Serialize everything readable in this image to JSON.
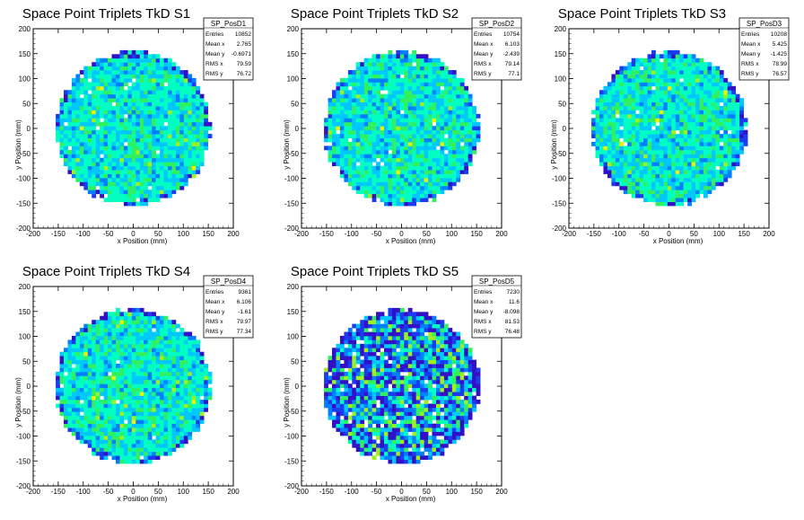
{
  "window": {
    "width": 896,
    "height": 574
  },
  "colors": {
    "palette": [
      "#3310c8",
      "#1a3cf0",
      "#0080ff",
      "#00c8ff",
      "#00ffc0",
      "#30f060",
      "#a0f020",
      "#f0f000",
      "#ff8000",
      "#ff0000"
    ],
    "frame": "#000000",
    "background": "#ffffff"
  },
  "chart_data": [
    {
      "type": "heatmap",
      "title": "Space Point Triplets TkD S1",
      "xlabel": "x Position (mm)",
      "ylabel": "y Position (mm)",
      "xlim": [
        -200,
        200
      ],
      "ylim": [
        -200,
        200
      ],
      "xticks": [
        -200,
        -150,
        -100,
        -50,
        0,
        50,
        100,
        150,
        200
      ],
      "yticks": [
        -200,
        -150,
        -100,
        -50,
        0,
        50,
        100,
        150,
        200
      ],
      "footprint_radius_mm": 155,
      "bin_width_mm": 8,
      "stats": {
        "name": "SP_PosD1",
        "rows": [
          [
            "Entries",
            "10852"
          ],
          [
            "Mean x",
            "2.765"
          ],
          [
            "Mean y",
            "-0.6971"
          ],
          [
            "RMS x",
            "79.59"
          ],
          [
            "RMS y",
            "76.72"
          ]
        ]
      }
    },
    {
      "type": "heatmap",
      "title": "Space Point Triplets TkD S2",
      "xlabel": "x Position (mm)",
      "ylabel": "y Position (mm)",
      "xlim": [
        -200,
        200
      ],
      "ylim": [
        -200,
        200
      ],
      "xticks": [
        -200,
        -150,
        -100,
        -50,
        0,
        50,
        100,
        150,
        200
      ],
      "yticks": [
        -200,
        -150,
        -100,
        -50,
        0,
        50,
        100,
        150,
        200
      ],
      "footprint_radius_mm": 155,
      "bin_width_mm": 8,
      "stats": {
        "name": "SP_PosD2",
        "rows": [
          [
            "Entries",
            "10754"
          ],
          [
            "Mean x",
            "6.103"
          ],
          [
            "Mean y",
            "-2.439"
          ],
          [
            "RMS x",
            "79.14"
          ],
          [
            "RMS y",
            "77.1"
          ]
        ]
      }
    },
    {
      "type": "heatmap",
      "title": "Space Point Triplets TkD S3",
      "xlabel": "x Position (mm)",
      "ylabel": "y Position (mm)",
      "xlim": [
        -200,
        200
      ],
      "ylim": [
        -200,
        200
      ],
      "xticks": [
        -200,
        -150,
        -100,
        -50,
        0,
        50,
        100,
        150,
        200
      ],
      "yticks": [
        -200,
        -150,
        -100,
        -50,
        0,
        50,
        100,
        150,
        200
      ],
      "footprint_radius_mm": 155,
      "bin_width_mm": 8,
      "stats": {
        "name": "SP_PosD3",
        "rows": [
          [
            "Entries",
            "10208"
          ],
          [
            "Mean x",
            "5.425"
          ],
          [
            "Mean y",
            "-1.425"
          ],
          [
            "RMS x",
            "78.99"
          ],
          [
            "RMS y",
            "76.57"
          ]
        ]
      }
    },
    {
      "type": "heatmap",
      "title": "Space Point Triplets TkD S4",
      "xlabel": "x Position (mm)",
      "ylabel": "y Position (mm)",
      "xlim": [
        -200,
        200
      ],
      "ylim": [
        -200,
        200
      ],
      "xticks": [
        -200,
        -150,
        -100,
        -50,
        0,
        50,
        100,
        150,
        200
      ],
      "yticks": [
        -200,
        -150,
        -100,
        -50,
        0,
        50,
        100,
        150,
        200
      ],
      "footprint_radius_mm": 155,
      "bin_width_mm": 8,
      "stats": {
        "name": "SP_PosD4",
        "rows": [
          [
            "Entries",
            "9361"
          ],
          [
            "Mean x",
            "6.106"
          ],
          [
            "Mean y",
            "-1.61"
          ],
          [
            "RMS x",
            "79.97"
          ],
          [
            "RMS y",
            "77.34"
          ]
        ]
      }
    },
    {
      "type": "heatmap",
      "title": "Space Point Triplets TkD S5",
      "xlabel": "x Position (mm)",
      "ylabel": "y Position (mm)",
      "xlim": [
        -200,
        200
      ],
      "ylim": [
        -200,
        200
      ],
      "xticks": [
        -200,
        -150,
        -100,
        -50,
        0,
        50,
        100,
        150,
        200
      ],
      "yticks": [
        -200,
        -150,
        -100,
        -50,
        0,
        50,
        100,
        150,
        200
      ],
      "footprint_radius_mm": 155,
      "bin_width_mm": 8,
      "stats": {
        "name": "SP_PosD5",
        "rows": [
          [
            "Entries",
            "7230"
          ],
          [
            "Mean x",
            "11.6"
          ],
          [
            "Mean y",
            "-8.098"
          ],
          [
            "RMS x",
            "81.53"
          ],
          [
            "RMS y",
            "76.48"
          ]
        ]
      }
    }
  ]
}
